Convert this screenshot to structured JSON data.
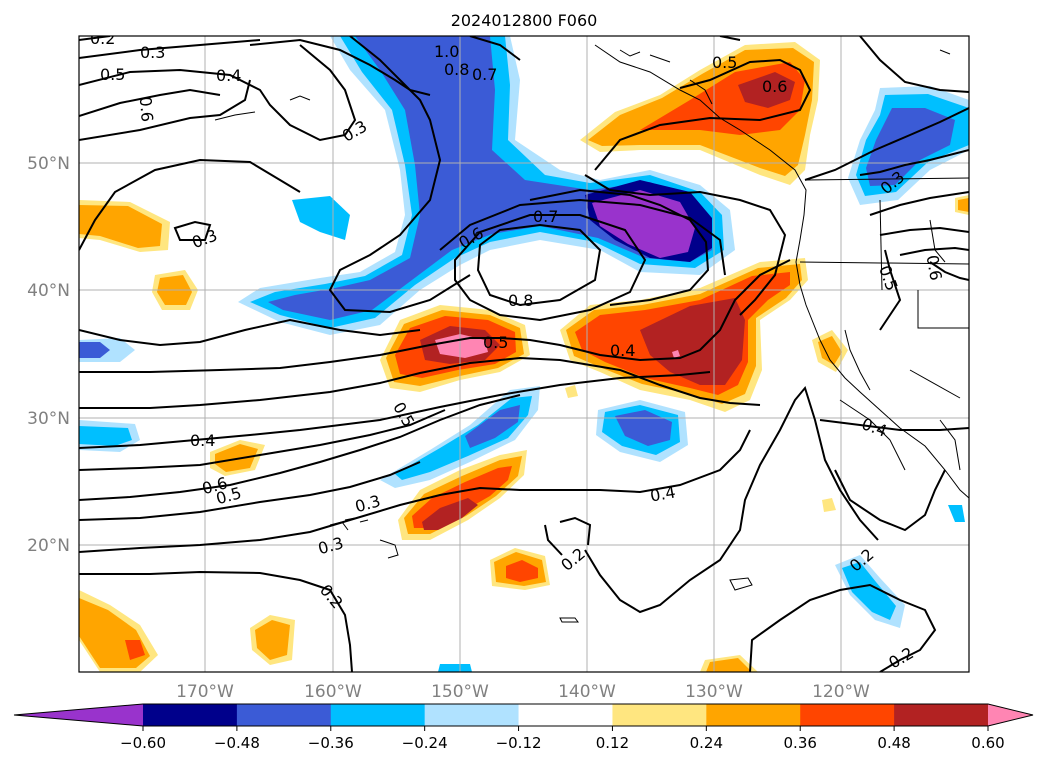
{
  "title": "2024012800 F060",
  "lat_labels": [
    "50°N",
    "40°N",
    "30°N",
    "20°N"
  ],
  "lon_labels": [
    "170°W",
    "160°W",
    "150°W",
    "140°W",
    "130°W",
    "120°W"
  ],
  "colorbar": {
    "colors": [
      "#9933cc",
      "#00008b",
      "#3b5bd6",
      "#00bfff",
      "#b0e2ff",
      "#ffffff",
      "#ffe680",
      "#ffa500",
      "#ff4500",
      "#b22222",
      "#ff85b3"
    ],
    "ticks": [
      "−0.60",
      "−0.48",
      "−0.36",
      "−0.24",
      "−0.12",
      "0.12",
      "0.24",
      "0.36",
      "0.48",
      "0.60"
    ]
  },
  "contour_labels": [
    {
      "text": "0.2",
      "color": "#000000"
    },
    {
      "text": "0.3",
      "color": "#000000"
    },
    {
      "text": "0.5",
      "color": "#000000"
    },
    {
      "text": "0.4",
      "color": "#000000"
    },
    {
      "text": "0.6",
      "color": "#000000"
    },
    {
      "text": "0.3",
      "color": "#000000"
    },
    {
      "text": "1.0",
      "color": "#000000"
    },
    {
      "text": "0.8",
      "color": "#000000"
    },
    {
      "text": "0.7",
      "color": "#000000"
    },
    {
      "text": "0.5",
      "color": "#000000"
    },
    {
      "text": "0.6",
      "color": "#000000"
    },
    {
      "text": "0.3",
      "color": "#000000"
    },
    {
      "text": "0.6",
      "color": "#000000"
    },
    {
      "text": "0.7",
      "color": "#000000"
    },
    {
      "text": "0.8",
      "color": "#000000"
    },
    {
      "text": "0.5",
      "color": "#000000"
    },
    {
      "text": "0.4",
      "color": "#000000"
    },
    {
      "text": "0.5",
      "color": "#000000"
    },
    {
      "text": "0.4",
      "color": "#000000"
    },
    {
      "text": "0.6",
      "color": "#000000"
    },
    {
      "text": "0.5",
      "color": "#000000"
    },
    {
      "text": "0.3",
      "color": "#000000"
    },
    {
      "text": "0.3",
      "color": "#000000"
    },
    {
      "text": "0.4",
      "color": "#000000"
    },
    {
      "text": "0.2",
      "color": "#000000"
    },
    {
      "text": "0.2",
      "color": "#000000"
    },
    {
      "text": "0.2",
      "color": "#000000"
    },
    {
      "text": "0.2",
      "color": "#000000"
    },
    {
      "text": "0.3",
      "color": "#000000"
    },
    {
      "text": "0.5",
      "color": "#000000"
    },
    {
      "text": "0.6",
      "color": "#000000"
    },
    {
      "text": "0.4",
      "color": "#000000"
    }
  ]
}
